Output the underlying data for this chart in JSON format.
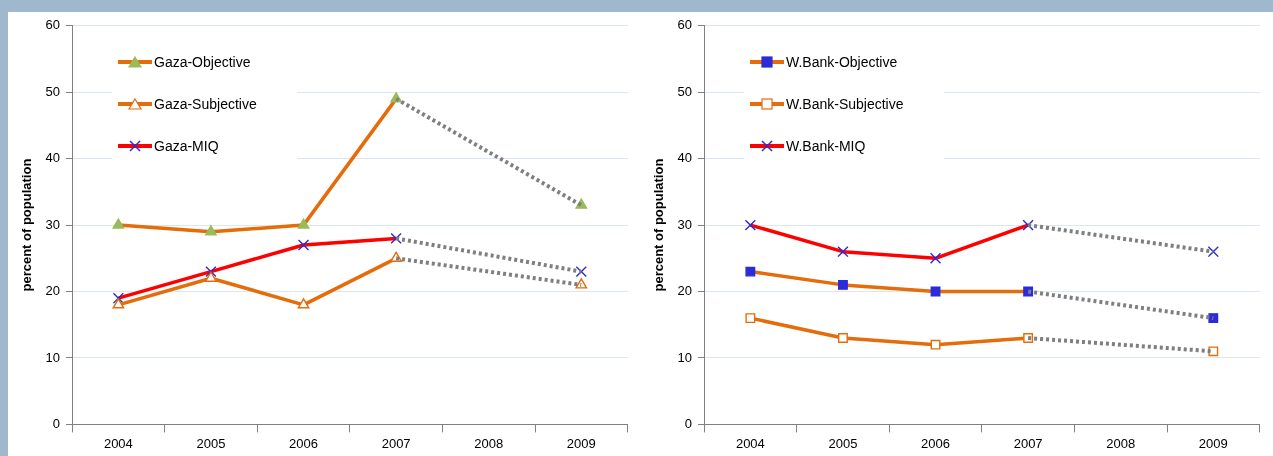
{
  "chart_data": [
    {
      "type": "line",
      "ylabel": "percent of population",
      "categories": [
        "2004",
        "2005",
        "2006",
        "2007",
        "2008",
        "2009"
      ],
      "ylim": [
        0,
        60
      ],
      "yticks": [
        0,
        10,
        20,
        30,
        40,
        50,
        60
      ],
      "grid": "y",
      "legend": "top left",
      "series": [
        {
          "color": "#7f7f7f",
          "marker": "none",
          "line_style": "dotted",
          "values": [
            null,
            null,
            null,
            49,
            null,
            33
          ]
        },
        {
          "color": "#7f7f7f",
          "marker": "none",
          "line_style": "dotted",
          "values": [
            null,
            null,
            null,
            25,
            null,
            21
          ]
        },
        {
          "color": "#7f7f7f",
          "marker": "none",
          "line_style": "dotted",
          "values": [
            null,
            null,
            null,
            28,
            null,
            23
          ]
        },
        {
          "name": "Gaza-Objective",
          "color": "#e46c0a",
          "marker": "triangle",
          "colors": [
            "#9bbb59",
            "#9bbb59",
            "#9bbb59",
            "#9bbb59",
            null,
            "#9bbb59"
          ],
          "values": [
            30,
            29,
            30,
            49,
            null,
            33
          ]
        },
        {
          "name": "Gaza-Subjective",
          "color": "#e46c0a",
          "marker": "triangle",
          "colors": [
            "#ffffff",
            "#ffffff",
            "#ffffff",
            "#ffffff",
            null,
            "#ffffff"
          ],
          "values": [
            18,
            22,
            18,
            25,
            null,
            21
          ]
        },
        {
          "name": "Gaza-MIQ",
          "color": "#ff0000",
          "marker": "cross",
          "colors": [
            "#2b2bd9",
            "#2b2bd9",
            "#2b2bd9",
            "#2b2bd9",
            null,
            "#2b2bd9"
          ],
          "values": [
            19,
            23,
            27,
            28,
            null,
            23
          ]
        }
      ]
    },
    {
      "type": "line",
      "ylabel": "percent of population",
      "categories": [
        "2004",
        "2005",
        "2006",
        "2007",
        "2008",
        "2009"
      ],
      "ylim": [
        0,
        60
      ],
      "yticks": [
        0,
        10,
        20,
        30,
        40,
        50,
        60
      ],
      "grid": "y",
      "legend": "top left",
      "series": [
        {
          "color": "#7f7f7f",
          "marker": "none",
          "line_style": "dotted",
          "values": [
            null,
            null,
            null,
            20,
            null,
            16
          ]
        },
        {
          "color": "#7f7f7f",
          "marker": "none",
          "line_style": "dotted",
          "values": [
            null,
            null,
            null,
            13,
            null,
            11
          ]
        },
        {
          "color": "#7f7f7f",
          "marker": "none",
          "line_style": "dotted",
          "values": [
            null,
            null,
            null,
            30,
            null,
            26
          ]
        },
        {
          "name": "W.Bank-Objective",
          "color": "#e46c0a",
          "marker": "square",
          "colors": [
            "#2b2bd9",
            "#2b2bd9",
            "#2b2bd9",
            "#2b2bd9",
            null,
            "#2b2bd9"
          ],
          "values": [
            23,
            21,
            20,
            20,
            null,
            16
          ]
        },
        {
          "name": "W.Bank-Subjective",
          "color": "#e46c0a",
          "marker": "square",
          "colors": [
            "#ffffff",
            "#ffffff",
            "#ffffff",
            "#ffffff",
            null,
            "#ffffff"
          ],
          "values": [
            16,
            13,
            12,
            13,
            null,
            11
          ]
        },
        {
          "name": "W.Bank-MIQ",
          "color": "#ff0000",
          "marker": "cross",
          "colors": [
            "#2b2bd9",
            "#2b2bd9",
            "#2b2bd9",
            "#2b2bd9",
            null,
            "#2b2bd9"
          ],
          "values": [
            30,
            26,
            25,
            30,
            null,
            26
          ]
        }
      ]
    }
  ]
}
